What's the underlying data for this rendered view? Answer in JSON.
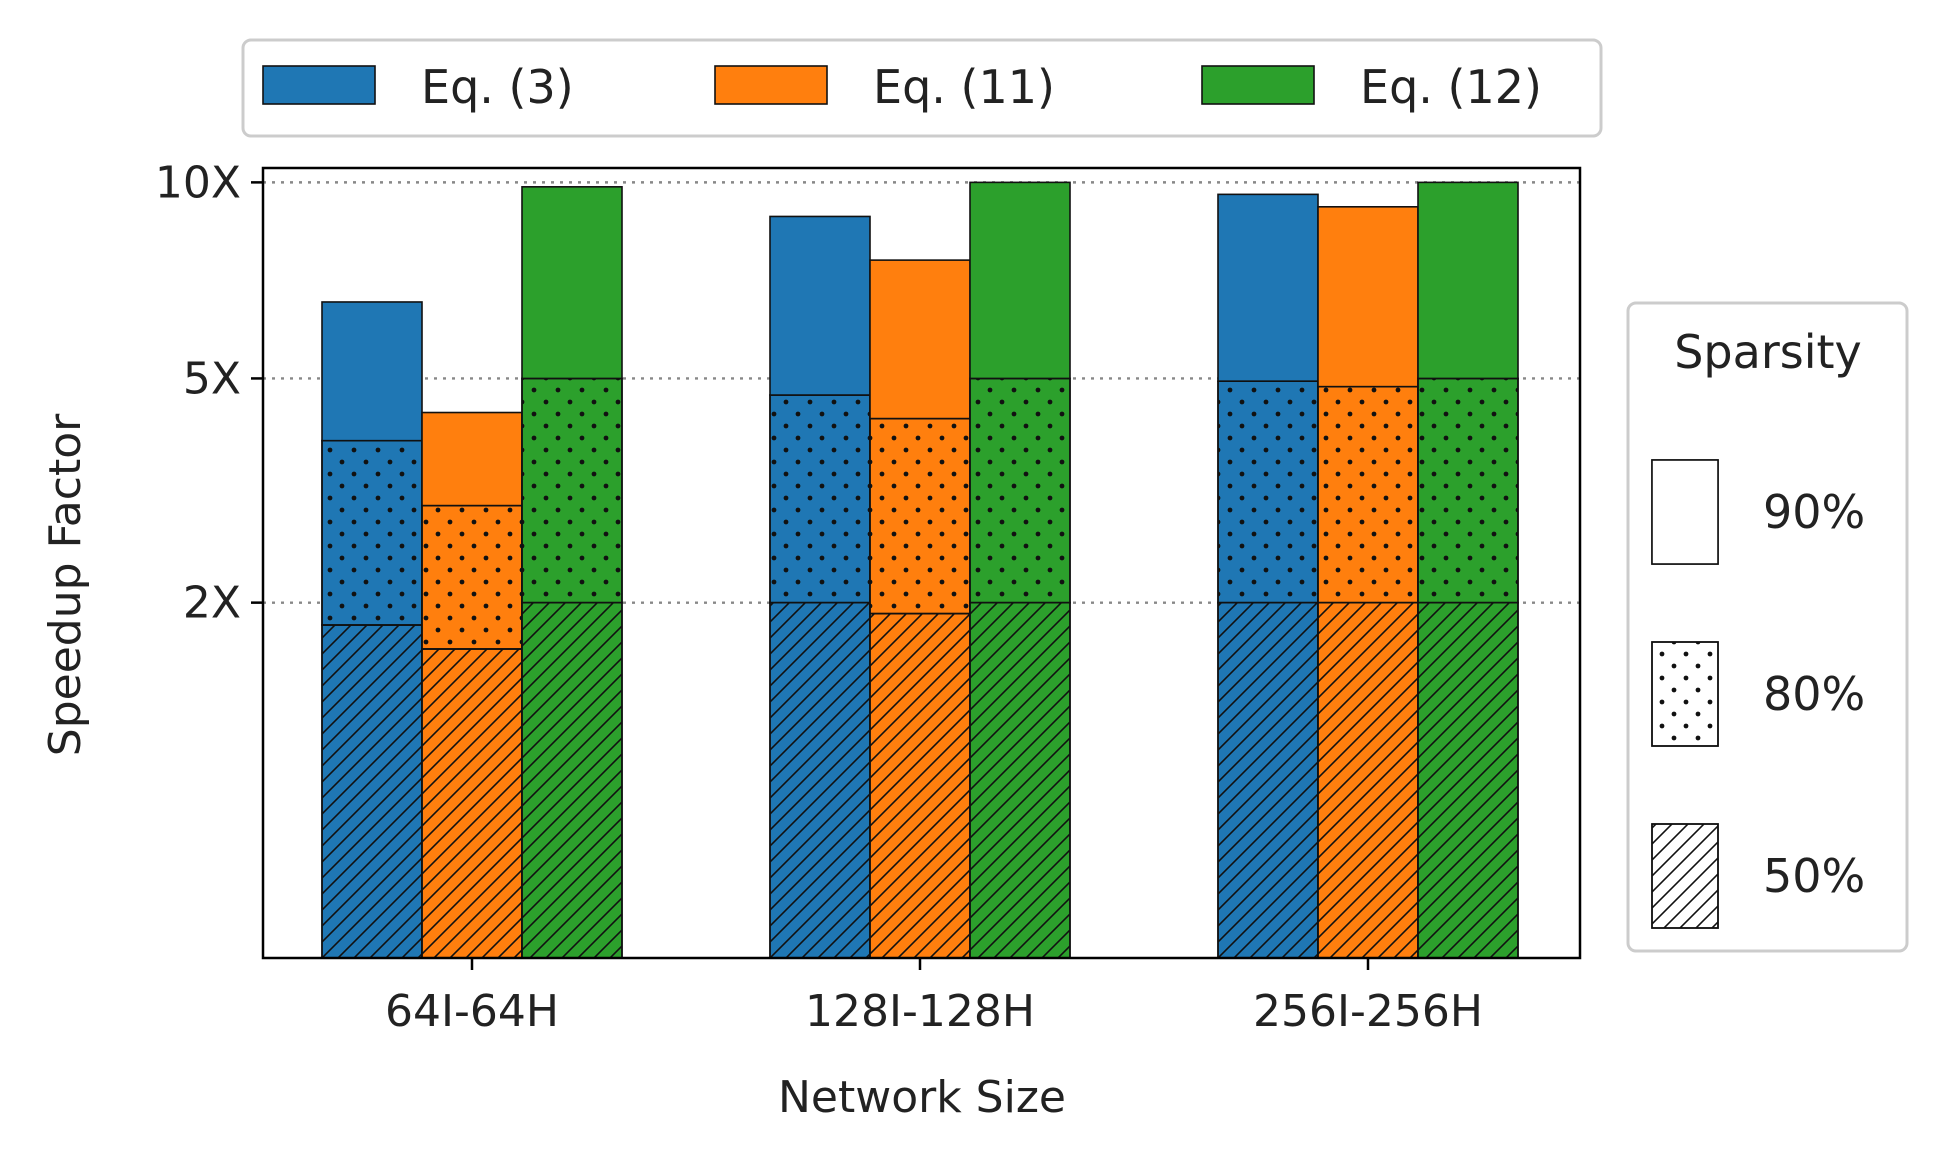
{
  "chart_data": {
    "type": "bar",
    "title": "",
    "xlabel": "Network Size",
    "ylabel": "Speedup Factor",
    "categories": [
      "64I-64H",
      "128I-128H",
      "256I-256H"
    ],
    "yticks": [
      {
        "value": 2,
        "label": "2X"
      },
      {
        "value": 5,
        "label": "5X"
      },
      {
        "value": 10,
        "label": "10X"
      }
    ],
    "ylim": [
      0,
      10.5
    ],
    "grid": "horizontal dotted at y ticks",
    "series": [
      {
        "name": "Eq. (3)",
        "color": "#1f77b4",
        "values": {
          "50%": [
            1.8,
            2.0,
            2.0
          ],
          "80%": [
            3.95,
            4.7,
            4.95
          ],
          "90%": [
            6.6,
            8.9,
            9.6
          ]
        }
      },
      {
        "name": "Eq. (11)",
        "color": "#ff7f0e",
        "values": {
          "50%": [
            1.6,
            1.9,
            2.0
          ],
          "80%": [
            3.05,
            4.3,
            4.85
          ],
          "90%": [
            4.4,
            7.65,
            9.2
          ]
        }
      },
      {
        "name": "Eq. (12)",
        "color": "#2ca02c",
        "values": {
          "50%": [
            2.0,
            2.0,
            2.0
          ],
          "80%": [
            5.0,
            5.0,
            5.0
          ],
          "90%": [
            9.85,
            10.0,
            10.0
          ]
        }
      }
    ],
    "legend_series": {
      "position": "top",
      "entries": [
        "Eq. (3)",
        "Eq. (11)",
        "Eq. (12)"
      ]
    },
    "legend_sparsity": {
      "title": "Sparsity",
      "position": "right",
      "entries": [
        {
          "label": "90%",
          "pattern": "none"
        },
        {
          "label": "80%",
          "pattern": "dots"
        },
        {
          "label": "50%",
          "pattern": "hatch"
        }
      ]
    }
  }
}
